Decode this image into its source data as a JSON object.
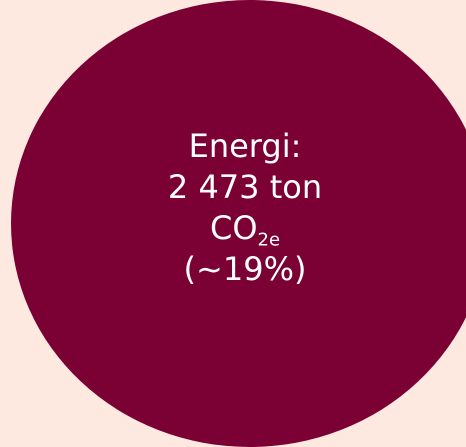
{
  "colors": {
    "background": "#fde9e0",
    "circle": "#7b0034",
    "text": "#ffffff"
  },
  "bubble": {
    "line1": "Energi:",
    "line2": "2 473 ton",
    "co2_main": "CO",
    "co2_sub": "2e",
    "line4": "(~19%)"
  }
}
